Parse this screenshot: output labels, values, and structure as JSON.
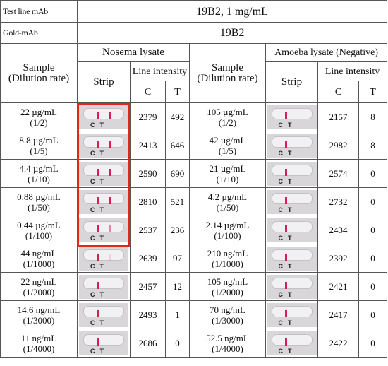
{
  "header": {
    "test_line_label": "Test line mAb",
    "test_line_value": "19B2, 1 mg/mL",
    "gold_label": "Gold-mAb",
    "gold_value": "19B2",
    "nosema_title": "Nosema lysate",
    "amoeba_title": "Amoeba lysate (Negative)",
    "sample_label": "Sample",
    "dilution_label": "(Dilution rate)",
    "strip_label": "Strip",
    "line_intensity_label": "Line intensity",
    "c_label": "C",
    "t_label": "T",
    "strip_letters": "CT"
  },
  "rows": [
    {
      "n_conc": "22 µg/mL",
      "n_dil": "(1/2)",
      "n_c": "2379",
      "n_t": "492",
      "n_tline": 1.0,
      "a_conc": "105 µg/mL",
      "a_dil": "(1/2)",
      "a_c": "2157",
      "a_t": "8"
    },
    {
      "n_conc": "8.8 µg/mL",
      "n_dil": "(1/5)",
      "n_c": "2413",
      "n_t": "646",
      "n_tline": 1.0,
      "a_conc": "42 µg/mL",
      "a_dil": "(1/5)",
      "a_c": "2982",
      "a_t": "8"
    },
    {
      "n_conc": "4.4 µg/mL",
      "n_dil": "(1/10)",
      "n_c": "2590",
      "n_t": "690",
      "n_tline": 1.0,
      "a_conc": "21 µg/mL",
      "a_dil": "(1/10)",
      "a_c": "2574",
      "a_t": "0"
    },
    {
      "n_conc": "0.88 µg/mL",
      "n_dil": "(1/50)",
      "n_c": "2810",
      "n_t": "521",
      "n_tline": 1.0,
      "a_conc": "4.2 µg/mL",
      "a_dil": "(1/50)",
      "a_c": "2732",
      "a_t": "0"
    },
    {
      "n_conc": "0.44 µg/mL",
      "n_dil": "(1/100)",
      "n_c": "2537",
      "n_t": "236",
      "n_tline": 0.5,
      "a_conc": "2.14 µg/mL",
      "a_dil": "(1/100)",
      "a_c": "2434",
      "a_t": "0"
    },
    {
      "n_conc": "44 ng/mL",
      "n_dil": "(1/1000)",
      "n_c": "2639",
      "n_t": "97",
      "n_tline": 0.15,
      "a_conc": "210 ng/mL",
      "a_dil": "(1/1000)",
      "a_c": "2392",
      "a_t": "0"
    },
    {
      "n_conc": "22 ng/mL",
      "n_dil": "(1/2000)",
      "n_c": "2457",
      "n_t": "12",
      "n_tline": 0.0,
      "a_conc": "105 ng/mL",
      "a_dil": "(1/2000)",
      "a_c": "2421",
      "a_t": "0"
    },
    {
      "n_conc": "14.6 ng/mL",
      "n_dil": "(1/3000)",
      "n_c": "2493",
      "n_t": "1",
      "n_tline": 0.0,
      "a_conc": "70 ng/mL",
      "a_dil": "(1/3000)",
      "a_c": "2417",
      "a_t": "0"
    },
    {
      "n_conc": "11 ng/mL",
      "n_dil": "(1/4000)",
      "n_c": "2686",
      "n_t": "0",
      "n_tline": 0.0,
      "a_conc": "52.5 ng/mL",
      "a_dil": "(1/4000)",
      "a_c": "2422",
      "a_t": "0"
    }
  ],
  "colors": {
    "highlight_box": "#e1261c",
    "strip_line": "#d81e52"
  }
}
